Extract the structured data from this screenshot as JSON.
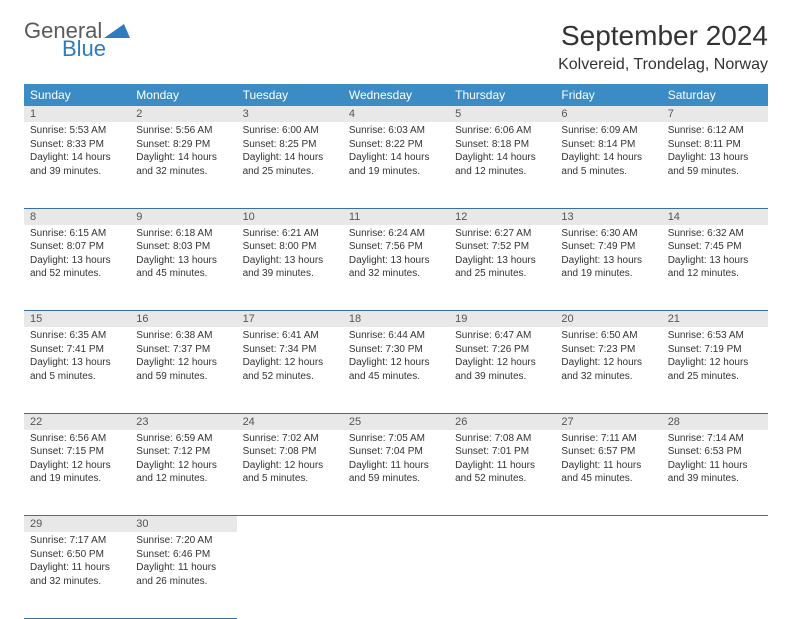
{
  "logo": {
    "line1": "General",
    "line2": "Blue",
    "triangle_color": "#2f7bbf"
  },
  "title": "September 2024",
  "location": "Kolvereid, Trondelag, Norway",
  "colors": {
    "header_bg": "#3b8bc4",
    "header_text": "#ffffff",
    "daynum_bg": "#e8e8e8",
    "daynum_text": "#555555",
    "row_divider": "#3b6fa0",
    "body_text": "#333333",
    "background": "#ffffff"
  },
  "typography": {
    "title_fontsize": 28,
    "location_fontsize": 16,
    "weekday_fontsize": 12,
    "daynum_fontsize": 11,
    "cell_fontsize": 10
  },
  "weekdays": [
    "Sunday",
    "Monday",
    "Tuesday",
    "Wednesday",
    "Thursday",
    "Friday",
    "Saturday"
  ],
  "days": [
    {
      "n": 1,
      "sunrise": "5:53 AM",
      "sunset": "8:33 PM",
      "daylight": "14 hours and 39 minutes."
    },
    {
      "n": 2,
      "sunrise": "5:56 AM",
      "sunset": "8:29 PM",
      "daylight": "14 hours and 32 minutes."
    },
    {
      "n": 3,
      "sunrise": "6:00 AM",
      "sunset": "8:25 PM",
      "daylight": "14 hours and 25 minutes."
    },
    {
      "n": 4,
      "sunrise": "6:03 AM",
      "sunset": "8:22 PM",
      "daylight": "14 hours and 19 minutes."
    },
    {
      "n": 5,
      "sunrise": "6:06 AM",
      "sunset": "8:18 PM",
      "daylight": "14 hours and 12 minutes."
    },
    {
      "n": 6,
      "sunrise": "6:09 AM",
      "sunset": "8:14 PM",
      "daylight": "14 hours and 5 minutes."
    },
    {
      "n": 7,
      "sunrise": "6:12 AM",
      "sunset": "8:11 PM",
      "daylight": "13 hours and 59 minutes."
    },
    {
      "n": 8,
      "sunrise": "6:15 AM",
      "sunset": "8:07 PM",
      "daylight": "13 hours and 52 minutes."
    },
    {
      "n": 9,
      "sunrise": "6:18 AM",
      "sunset": "8:03 PM",
      "daylight": "13 hours and 45 minutes."
    },
    {
      "n": 10,
      "sunrise": "6:21 AM",
      "sunset": "8:00 PM",
      "daylight": "13 hours and 39 minutes."
    },
    {
      "n": 11,
      "sunrise": "6:24 AM",
      "sunset": "7:56 PM",
      "daylight": "13 hours and 32 minutes."
    },
    {
      "n": 12,
      "sunrise": "6:27 AM",
      "sunset": "7:52 PM",
      "daylight": "13 hours and 25 minutes."
    },
    {
      "n": 13,
      "sunrise": "6:30 AM",
      "sunset": "7:49 PM",
      "daylight": "13 hours and 19 minutes."
    },
    {
      "n": 14,
      "sunrise": "6:32 AM",
      "sunset": "7:45 PM",
      "daylight": "13 hours and 12 minutes."
    },
    {
      "n": 15,
      "sunrise": "6:35 AM",
      "sunset": "7:41 PM",
      "daylight": "13 hours and 5 minutes."
    },
    {
      "n": 16,
      "sunrise": "6:38 AM",
      "sunset": "7:37 PM",
      "daylight": "12 hours and 59 minutes."
    },
    {
      "n": 17,
      "sunrise": "6:41 AM",
      "sunset": "7:34 PM",
      "daylight": "12 hours and 52 minutes."
    },
    {
      "n": 18,
      "sunrise": "6:44 AM",
      "sunset": "7:30 PM",
      "daylight": "12 hours and 45 minutes."
    },
    {
      "n": 19,
      "sunrise": "6:47 AM",
      "sunset": "7:26 PM",
      "daylight": "12 hours and 39 minutes."
    },
    {
      "n": 20,
      "sunrise": "6:50 AM",
      "sunset": "7:23 PM",
      "daylight": "12 hours and 32 minutes."
    },
    {
      "n": 21,
      "sunrise": "6:53 AM",
      "sunset": "7:19 PM",
      "daylight": "12 hours and 25 minutes."
    },
    {
      "n": 22,
      "sunrise": "6:56 AM",
      "sunset": "7:15 PM",
      "daylight": "12 hours and 19 minutes."
    },
    {
      "n": 23,
      "sunrise": "6:59 AM",
      "sunset": "7:12 PM",
      "daylight": "12 hours and 12 minutes."
    },
    {
      "n": 24,
      "sunrise": "7:02 AM",
      "sunset": "7:08 PM",
      "daylight": "12 hours and 5 minutes."
    },
    {
      "n": 25,
      "sunrise": "7:05 AM",
      "sunset": "7:04 PM",
      "daylight": "11 hours and 59 minutes."
    },
    {
      "n": 26,
      "sunrise": "7:08 AM",
      "sunset": "7:01 PM",
      "daylight": "11 hours and 52 minutes."
    },
    {
      "n": 27,
      "sunrise": "7:11 AM",
      "sunset": "6:57 PM",
      "daylight": "11 hours and 45 minutes."
    },
    {
      "n": 28,
      "sunrise": "7:14 AM",
      "sunset": "6:53 PM",
      "daylight": "11 hours and 39 minutes."
    },
    {
      "n": 29,
      "sunrise": "7:17 AM",
      "sunset": "6:50 PM",
      "daylight": "11 hours and 32 minutes."
    },
    {
      "n": 30,
      "sunrise": "7:20 AM",
      "sunset": "6:46 PM",
      "daylight": "11 hours and 26 minutes."
    }
  ],
  "labels": {
    "sunrise": "Sunrise:",
    "sunset": "Sunset:",
    "daylight": "Daylight:"
  },
  "layout": {
    "columns": 7,
    "start_weekday": 0,
    "days_in_month": 30
  }
}
